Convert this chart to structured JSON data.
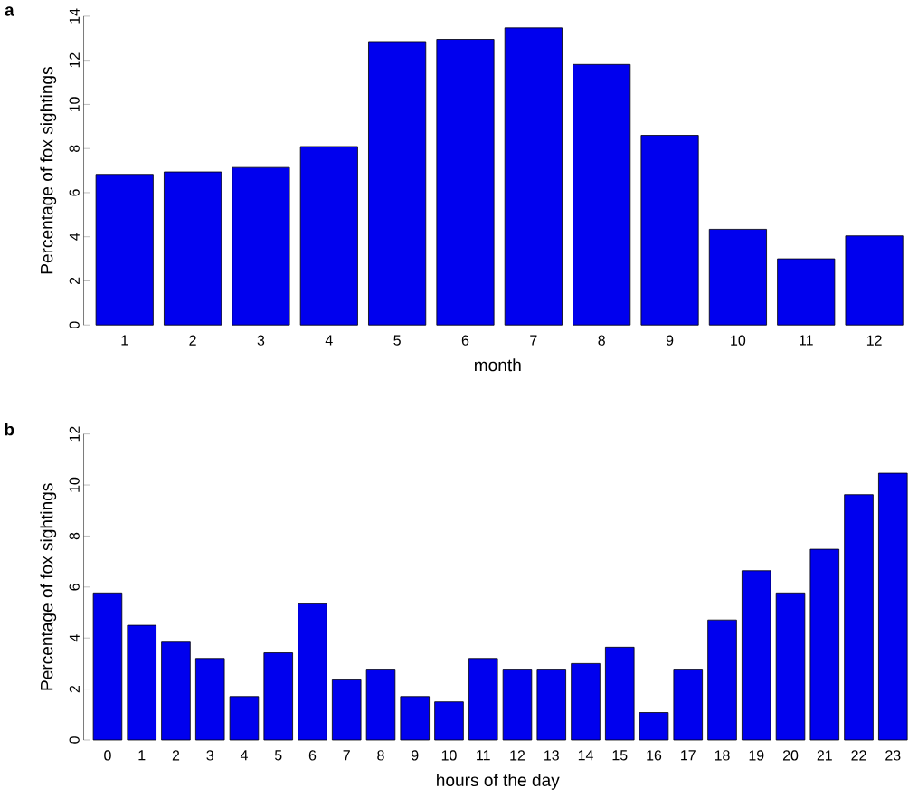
{
  "chart_data": [
    {
      "type": "bar",
      "title": "a",
      "xlabel": "month",
      "ylabel": "Percentage of fox sightings",
      "categories": [
        "1",
        "2",
        "3",
        "4",
        "5",
        "6",
        "7",
        "8",
        "9",
        "10",
        "11",
        "12"
      ],
      "values": [
        6.83,
        6.94,
        7.14,
        8.09,
        12.85,
        12.95,
        13.47,
        11.81,
        8.6,
        4.34,
        3.0,
        4.04
      ],
      "color": "#0000ee",
      "ylim": [
        0,
        14
      ],
      "yticks": [
        0,
        2,
        4,
        6,
        8,
        10,
        12,
        14
      ]
    },
    {
      "type": "bar",
      "title": "b",
      "xlabel": "hours of the day",
      "ylabel": "Percentage of fox sightings",
      "categories": [
        "0",
        "1",
        "2",
        "3",
        "4",
        "5",
        "6",
        "7",
        "8",
        "9",
        "10",
        "11",
        "12",
        "13",
        "14",
        "15",
        "16",
        "17",
        "18",
        "19",
        "20",
        "21",
        "22",
        "23"
      ],
      "values": [
        5.77,
        4.5,
        3.84,
        3.2,
        1.71,
        3.42,
        5.34,
        2.36,
        2.78,
        1.71,
        1.5,
        3.2,
        2.78,
        2.78,
        3.0,
        3.64,
        1.08,
        2.78,
        4.71,
        6.64,
        5.77,
        7.48,
        9.62,
        10.46
      ],
      "color": "#0000ee",
      "ylim": [
        0,
        12
      ],
      "yticks": [
        0,
        2,
        4,
        6,
        8,
        10,
        12
      ]
    }
  ]
}
